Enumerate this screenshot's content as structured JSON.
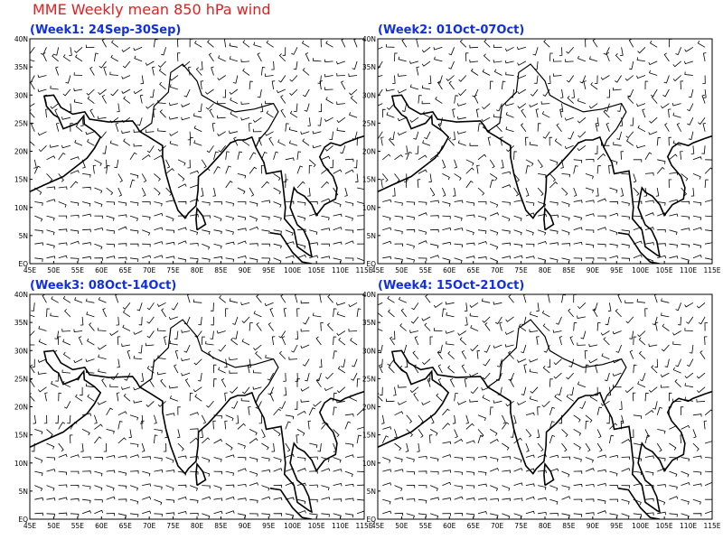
{
  "title": "MME Weekly mean 850 hPa wind",
  "panels": [
    {
      "title": "(Week1: 24Sep-30Sep)"
    },
    {
      "title": "(Week2: 01Oct-07Oct)"
    },
    {
      "title": "(Week3: 08Oct-14Oct)"
    },
    {
      "title": "(Week4: 15Oct-21Oct)"
    }
  ],
  "x_labels": [
    "45E",
    "50E",
    "55E",
    "60E",
    "65E",
    "70E",
    "75E",
    "80E",
    "85E",
    "90E",
    "95E",
    "100E",
    "105E",
    "110E",
    "115E"
  ],
  "y_labels": [
    "EQ",
    "5N",
    "10N",
    "15N",
    "20N",
    "25N",
    "30N",
    "35N",
    "40N"
  ]
}
